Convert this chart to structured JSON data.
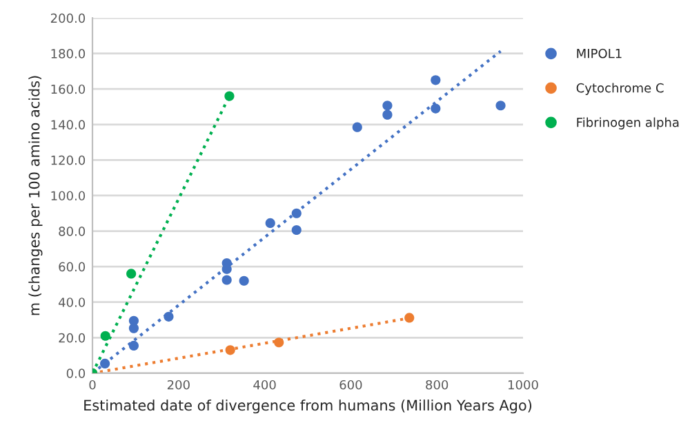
{
  "chart_data": {
    "type": "scatter",
    "xlabel": "Estimated date of divergence from humans (Million Years Ago)",
    "ylabel": "m (changes per 100 amino acids)",
    "series": [
      {
        "name": "MIPOL1",
        "color": "#4472c4",
        "x": [
          29,
          96,
          96,
          96,
          177,
          312,
          312,
          312,
          352,
          413,
          474,
          474,
          615,
          685,
          685,
          797,
          797,
          948
        ],
        "values": [
          5.4,
          29.5,
          25.3,
          15.5,
          31.8,
          62,
          58.6,
          52.5,
          52,
          84.5,
          90,
          80.6,
          138.5,
          150.7,
          145.5,
          165,
          149,
          150.7
        ]
      },
      {
        "name": "Cytochrome C",
        "color": "#ed7d31",
        "x": [
          0,
          320,
          433,
          736
        ],
        "values": [
          0,
          13,
          17.3,
          31.2
        ]
      },
      {
        "name": "Fibrinogen alpha",
        "color": "#00b050",
        "x": [
          0,
          30,
          90,
          318
        ],
        "values": [
          0,
          21,
          56,
          156
        ]
      },
      {
        "type": "line",
        "color": "#4472c4",
        "line_style": "dotted",
        "marker": "none",
        "x": [
          0,
          948
        ],
        "values": [
          0,
          181.3
        ]
      },
      {
        "type": "line",
        "color": "#ed7d31",
        "line_style": "dotted",
        "marker": "none",
        "x": [
          0,
          736
        ],
        "values": [
          0,
          31
        ]
      },
      {
        "type": "line",
        "color": "#00b050",
        "line_style": "dotted",
        "marker": "none",
        "x": [
          0,
          318
        ],
        "values": [
          0,
          156
        ]
      }
    ],
    "marker": "circle",
    "grid": "y",
    "legend": "right",
    "xlim": [
      0,
      1000
    ],
    "xticks": [
      0,
      200,
      400,
      600,
      800,
      1000
    ],
    "ylim": [
      0,
      200
    ],
    "yticks": [
      {
        "value": 0,
        "label": "0.0"
      },
      {
        "value": 20,
        "label": "20.0"
      },
      {
        "value": 40,
        "label": "40.0"
      },
      {
        "value": 60,
        "label": "60.0"
      },
      {
        "value": 80,
        "label": "80.0"
      },
      {
        "value": 100,
        "label": "100.0"
      },
      {
        "value": 120,
        "label": "120.0"
      },
      {
        "value": 140,
        "label": "140.0"
      },
      {
        "value": 160,
        "label": "160.0"
      },
      {
        "value": 180,
        "label": "180.0"
      },
      {
        "value": 200,
        "label": "200.0"
      }
    ]
  }
}
